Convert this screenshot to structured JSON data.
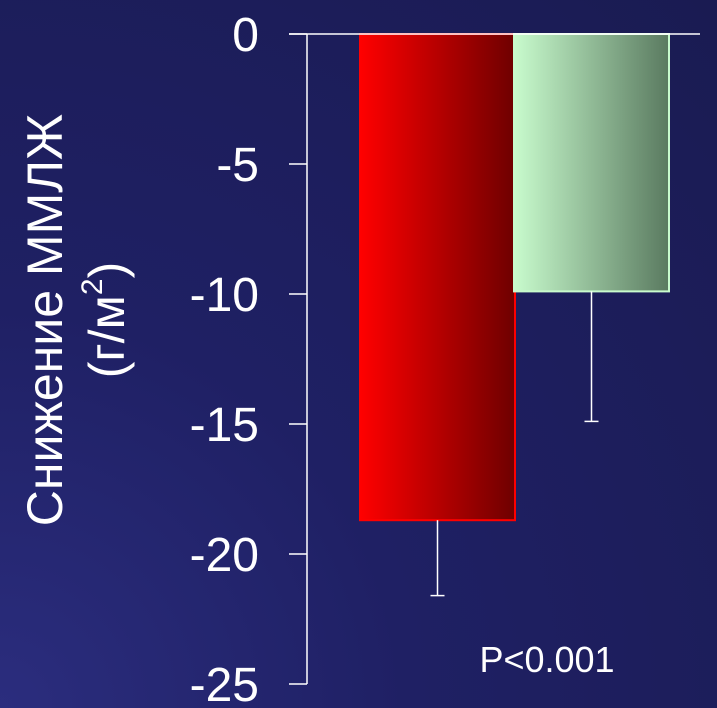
{
  "chart_data": {
    "type": "bar",
    "categories": [
      "",
      ""
    ],
    "values": [
      -18.7,
      -9.9
    ],
    "errors": [
      2.9,
      5.0
    ],
    "bar_colors": [
      {
        "from": "#ff0000",
        "to": "#6e0000"
      },
      {
        "from": "#c8fbcd",
        "to": "#5a7a60"
      }
    ],
    "ylabel_line1": "Снижение ММЛЖ",
    "ylabel_line2_prefix": "(г/м",
    "ylabel_superscript": "2",
    "ylabel_line2_suffix": ")",
    "ylim": [
      -25,
      0
    ],
    "yticks": [
      0,
      -5,
      -10,
      -15,
      -20,
      -25
    ],
    "ytick_labels": [
      "0",
      "-5",
      "-10",
      "-15",
      "-20",
      "-25"
    ],
    "annotation": "P<0.001",
    "grid": false,
    "background": "#1f2064",
    "axis_color": "#ffffff"
  }
}
